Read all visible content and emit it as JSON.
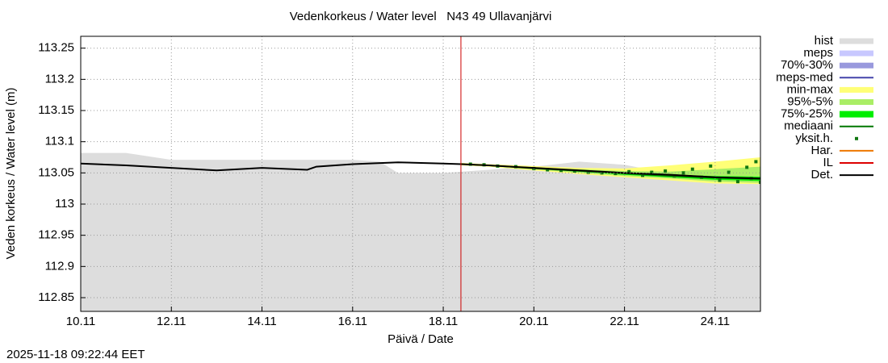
{
  "chart_data": {
    "type": "line",
    "title": "Vedenkorkeus / Water level   N43 49 Ullavanjärvi",
    "x_label": "Päivä / Date",
    "y_label": "Veden korkeus / Water level (m)",
    "footer": "2025-11-18 09:22:44 EET",
    "xlim": [
      10,
      25
    ],
    "xticks": [
      {
        "value": 10,
        "label": "10.11"
      },
      {
        "value": 12,
        "label": "12.11"
      },
      {
        "value": 14,
        "label": "14.11"
      },
      {
        "value": 16,
        "label": "16.11"
      },
      {
        "value": 18,
        "label": "18.11"
      },
      {
        "value": 20,
        "label": "20.11"
      },
      {
        "value": 22,
        "label": "22.11"
      },
      {
        "value": 24,
        "label": "24.11"
      }
    ],
    "ylim": [
      112.828,
      113.269
    ],
    "yticks": [
      112.85,
      112.9,
      112.95,
      113,
      113.05,
      113.1,
      113.15,
      113.2,
      113.25
    ],
    "grid": true,
    "now_x": 18.39,
    "now_color": "#cc0000",
    "series": [
      {
        "name": "hist",
        "color": "#dddddd",
        "style": "area",
        "x": [
          10,
          11,
          12,
          13,
          14,
          15,
          16,
          16.6,
          17,
          18,
          19,
          19.5,
          20,
          21,
          22,
          22.5,
          23,
          24,
          25
        ],
        "values": [
          113.082,
          113.082,
          113.071,
          113.071,
          113.071,
          113.071,
          113.071,
          113.068,
          113.05,
          113.05,
          113.055,
          113.058,
          113.06,
          113.068,
          113.063,
          113.056,
          113.055,
          113.052,
          113.05
        ]
      },
      {
        "name": "meps",
        "color": "#c8c8ff",
        "style": "band",
        "x": [
          20.5,
          21,
          21.5,
          22,
          22.5
        ],
        "lower": [
          113.054,
          113.05,
          113.048,
          113.046,
          113.045
        ],
        "upper": [
          113.057,
          113.054,
          113.052,
          113.05,
          113.049
        ]
      },
      {
        "name": "70%-30%",
        "color": "#9999dd",
        "style": "band",
        "x": [
          20.5,
          21,
          21.5,
          22,
          22.5
        ],
        "lower": [
          113.055,
          113.051,
          113.049,
          113.047,
          113.046
        ],
        "upper": [
          113.056,
          113.053,
          113.051,
          113.049,
          113.048
        ]
      },
      {
        "name": "meps-med",
        "color": "#4444aa",
        "style": "line",
        "x": [
          20.5,
          21,
          21.5,
          22,
          22.5
        ],
        "values": [
          113.055,
          113.052,
          113.05,
          113.048,
          113.047
        ]
      },
      {
        "name": "min-max",
        "color": "#ffff77",
        "style": "band",
        "x": [
          18.4,
          19,
          20,
          21,
          22,
          23,
          24,
          25
        ],
        "lower": [
          113.062,
          113.06,
          113.054,
          113.048,
          113.043,
          113.038,
          113.033,
          113.032
        ],
        "upper": [
          113.066,
          113.064,
          113.061,
          113.058,
          113.057,
          113.062,
          113.068,
          113.075
        ]
      },
      {
        "name": "95%-5%",
        "color": "#aaee66",
        "style": "band",
        "x": [
          18.4,
          19,
          20,
          21,
          22,
          23,
          24,
          25
        ],
        "lower": [
          113.063,
          113.061,
          113.056,
          113.05,
          113.045,
          113.041,
          113.036,
          113.034
        ],
        "upper": [
          113.065,
          113.063,
          113.059,
          113.056,
          113.053,
          113.052,
          113.056,
          113.06
        ]
      },
      {
        "name": "75%-25%",
        "color": "#00ee00",
        "style": "band",
        "x": [
          18.4,
          19,
          20,
          21,
          22,
          23,
          24,
          25
        ],
        "lower": [
          113.063,
          113.061,
          113.057,
          113.052,
          113.047,
          113.043,
          113.039,
          113.037
        ],
        "upper": [
          113.065,
          113.062,
          113.058,
          113.054,
          113.05,
          113.047,
          113.045,
          113.044
        ]
      },
      {
        "name": "mediaani",
        "color": "#007700",
        "style": "line",
        "x": [
          18.4,
          19,
          20,
          21,
          22,
          23,
          24,
          25
        ],
        "values": [
          113.064,
          113.062,
          113.057,
          113.053,
          113.049,
          113.045,
          113.042,
          113.04
        ]
      },
      {
        "name": "yksit.h.",
        "color": "#117711",
        "style": "points",
        "x": [
          18.6,
          18.9,
          19.2,
          19.6,
          20,
          20.3,
          20.6,
          20.9,
          21.2,
          21.5,
          21.8,
          22.1,
          22.4,
          22.6,
          22.9,
          23.1,
          23.3,
          23.5,
          23.7,
          23.9,
          24.1,
          24.3,
          24.5,
          24.7,
          24.8,
          24.9,
          25
        ],
        "values": [
          113.064,
          113.063,
          113.061,
          113.06,
          113.057,
          113.055,
          113.054,
          113.053,
          113.051,
          113.05,
          113.049,
          113.052,
          113.046,
          113.051,
          113.053,
          113.045,
          113.05,
          113.056,
          113.043,
          113.061,
          113.038,
          113.051,
          113.036,
          113.059,
          113.041,
          113.068,
          113.035
        ]
      },
      {
        "name": "Har.",
        "color": "#ee7700",
        "style": "line",
        "x": [],
        "values": []
      },
      {
        "name": "IL",
        "color": "#dd0000",
        "style": "line",
        "x": [
          18.4,
          19,
          20,
          21,
          22,
          23,
          24,
          25
        ],
        "values": [
          113.064,
          113.062,
          113.058,
          113.054,
          113.05,
          113.047,
          113.043,
          113.041
        ]
      },
      {
        "name": "Det.",
        "color": "#000000",
        "style": "line",
        "x": [
          10,
          11,
          12,
          13,
          14,
          15,
          15.2,
          16,
          17,
          18,
          18.4,
          19,
          20,
          21,
          22,
          23,
          24,
          25
        ],
        "values": [
          113.065,
          113.062,
          113.058,
          113.054,
          113.058,
          113.055,
          113.06,
          113.064,
          113.067,
          113.065,
          113.064,
          113.062,
          113.058,
          113.054,
          113.05,
          113.047,
          113.043,
          113.041
        ]
      }
    ]
  }
}
